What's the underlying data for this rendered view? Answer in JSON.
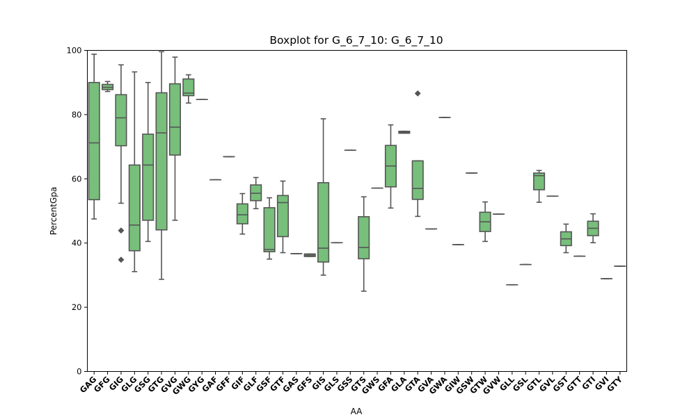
{
  "chart_data": {
    "type": "box",
    "title": "Boxplot for G_6_7_10: G_6_7_10",
    "xlabel": "AA",
    "ylabel": "PercentGpa",
    "ylim": [
      0,
      100
    ],
    "yticks": [
      0,
      20,
      40,
      60,
      80,
      100
    ],
    "grid": false,
    "box_color": "#77bf7b",
    "line_color": "#555555",
    "categories": [
      "GAG",
      "GFG",
      "GIG",
      "GLG",
      "GSG",
      "GTG",
      "GVG",
      "GWG",
      "GYG",
      "GAF",
      "GFF",
      "GIF",
      "GLF",
      "GSF",
      "GTF",
      "GAS",
      "GFS",
      "GIS",
      "GLS",
      "GSS",
      "GTS",
      "GWS",
      "GFA",
      "GLA",
      "GTA",
      "GVA",
      "GWA",
      "GIW",
      "GSW",
      "GTW",
      "GVW",
      "GLL",
      "GSL",
      "GTL",
      "GVL",
      "GST",
      "GTT",
      "GTI",
      "GVI",
      "GTY"
    ],
    "boxes": [
      {
        "min": 47.5,
        "q1": 53.5,
        "median": 71.2,
        "q3": 90.0,
        "max": 98.8,
        "outliers": []
      },
      {
        "min": 87.2,
        "q1": 87.8,
        "median": 88.5,
        "q3": 89.4,
        "max": 90.3,
        "outliers": []
      },
      {
        "min": 52.4,
        "q1": 70.3,
        "median": 79.0,
        "q3": 86.2,
        "max": 95.5,
        "outliers": [
          43.9,
          34.8
        ]
      },
      {
        "min": 31.1,
        "q1": 37.6,
        "median": 45.6,
        "q3": 64.3,
        "max": 93.3,
        "outliers": []
      },
      {
        "min": 40.5,
        "q1": 47.1,
        "median": 64.3,
        "q3": 73.9,
        "max": 90.0,
        "outliers": []
      },
      {
        "min": 28.7,
        "q1": 44.1,
        "median": 74.3,
        "q3": 86.8,
        "max": 99.6,
        "outliers": []
      },
      {
        "min": 47.1,
        "q1": 67.4,
        "median": 76.1,
        "q3": 89.6,
        "max": 97.9,
        "outliers": []
      },
      {
        "min": 83.6,
        "q1": 85.9,
        "median": 86.7,
        "q3": 91.1,
        "max": 92.4,
        "outliers": []
      },
      {
        "min": 84.7,
        "q1": 84.7,
        "median": 84.7,
        "q3": 84.7,
        "max": 84.7,
        "outliers": []
      },
      {
        "min": 59.7,
        "q1": 59.7,
        "median": 59.7,
        "q3": 59.7,
        "max": 59.7,
        "outliers": []
      },
      {
        "min": 66.9,
        "q1": 66.9,
        "median": 66.9,
        "q3": 66.9,
        "max": 66.9,
        "outliers": []
      },
      {
        "min": 42.8,
        "q1": 46.0,
        "median": 48.8,
        "q3": 52.2,
        "max": 55.4,
        "outliers": []
      },
      {
        "min": 50.7,
        "q1": 53.2,
        "median": 55.5,
        "q3": 58.1,
        "max": 60.4,
        "outliers": []
      },
      {
        "min": 35.0,
        "q1": 37.3,
        "median": 38.0,
        "q3": 51.0,
        "max": 54.1,
        "outliers": []
      },
      {
        "min": 37.0,
        "q1": 42.0,
        "median": 52.6,
        "q3": 54.8,
        "max": 59.3,
        "outliers": []
      },
      {
        "min": 36.7,
        "q1": 36.7,
        "median": 36.7,
        "q3": 36.7,
        "max": 36.7,
        "outliers": []
      },
      {
        "min": 35.8,
        "q1": 35.8,
        "median": 36.2,
        "q3": 36.6,
        "max": 36.6,
        "outliers": []
      },
      {
        "min": 30.0,
        "q1": 34.1,
        "median": 38.4,
        "q3": 58.8,
        "max": 78.7,
        "outliers": []
      },
      {
        "min": 40.1,
        "q1": 40.1,
        "median": 40.1,
        "q3": 40.1,
        "max": 40.1,
        "outliers": []
      },
      {
        "min": 68.9,
        "q1": 68.9,
        "median": 68.9,
        "q3": 68.9,
        "max": 68.9,
        "outliers": []
      },
      {
        "min": 25.0,
        "q1": 35.1,
        "median": 38.6,
        "q3": 48.2,
        "max": 54.4,
        "outliers": []
      },
      {
        "min": 57.1,
        "q1": 57.1,
        "median": 57.1,
        "q3": 57.1,
        "max": 57.1,
        "outliers": []
      },
      {
        "min": 50.9,
        "q1": 57.5,
        "median": 64.0,
        "q3": 70.4,
        "max": 76.8,
        "outliers": []
      },
      {
        "min": 74.2,
        "q1": 74.2,
        "median": 74.5,
        "q3": 74.8,
        "max": 74.8,
        "outliers": []
      },
      {
        "min": 48.3,
        "q1": 53.6,
        "median": 57.0,
        "q3": 65.6,
        "max": 65.6,
        "outliers": [
          86.6
        ]
      },
      {
        "min": 44.4,
        "q1": 44.4,
        "median": 44.4,
        "q3": 44.4,
        "max": 44.4,
        "outliers": []
      },
      {
        "min": 79.1,
        "q1": 79.1,
        "median": 79.1,
        "q3": 79.1,
        "max": 79.1,
        "outliers": []
      },
      {
        "min": 39.5,
        "q1": 39.5,
        "median": 39.5,
        "q3": 39.5,
        "max": 39.5,
        "outliers": []
      },
      {
        "min": 61.8,
        "q1": 61.8,
        "median": 61.8,
        "q3": 61.8,
        "max": 61.8,
        "outliers": []
      },
      {
        "min": 40.5,
        "q1": 43.6,
        "median": 46.6,
        "q3": 49.6,
        "max": 52.8,
        "outliers": []
      },
      {
        "min": 49.0,
        "q1": 49.0,
        "median": 49.0,
        "q3": 49.0,
        "max": 49.0,
        "outliers": []
      },
      {
        "min": 27.0,
        "q1": 27.0,
        "median": 27.0,
        "q3": 27.0,
        "max": 27.0,
        "outliers": []
      },
      {
        "min": 33.3,
        "q1": 33.3,
        "median": 33.3,
        "q3": 33.3,
        "max": 33.3,
        "outliers": []
      },
      {
        "min": 52.7,
        "q1": 56.6,
        "median": 61.0,
        "q3": 61.8,
        "max": 62.6,
        "outliers": []
      },
      {
        "min": 54.6,
        "q1": 54.6,
        "median": 54.6,
        "q3": 54.6,
        "max": 54.6,
        "outliers": []
      },
      {
        "min": 37.0,
        "q1": 39.2,
        "median": 41.3,
        "q3": 43.5,
        "max": 45.9,
        "outliers": []
      },
      {
        "min": 35.9,
        "q1": 35.9,
        "median": 35.9,
        "q3": 35.9,
        "max": 35.9,
        "outliers": []
      },
      {
        "min": 40.1,
        "q1": 42.3,
        "median": 44.6,
        "q3": 46.8,
        "max": 49.1,
        "outliers": []
      },
      {
        "min": 28.9,
        "q1": 28.9,
        "median": 28.9,
        "q3": 28.9,
        "max": 28.9,
        "outliers": []
      },
      {
        "min": 32.8,
        "q1": 32.8,
        "median": 32.8,
        "q3": 32.8,
        "max": 32.8,
        "outliers": []
      }
    ]
  }
}
